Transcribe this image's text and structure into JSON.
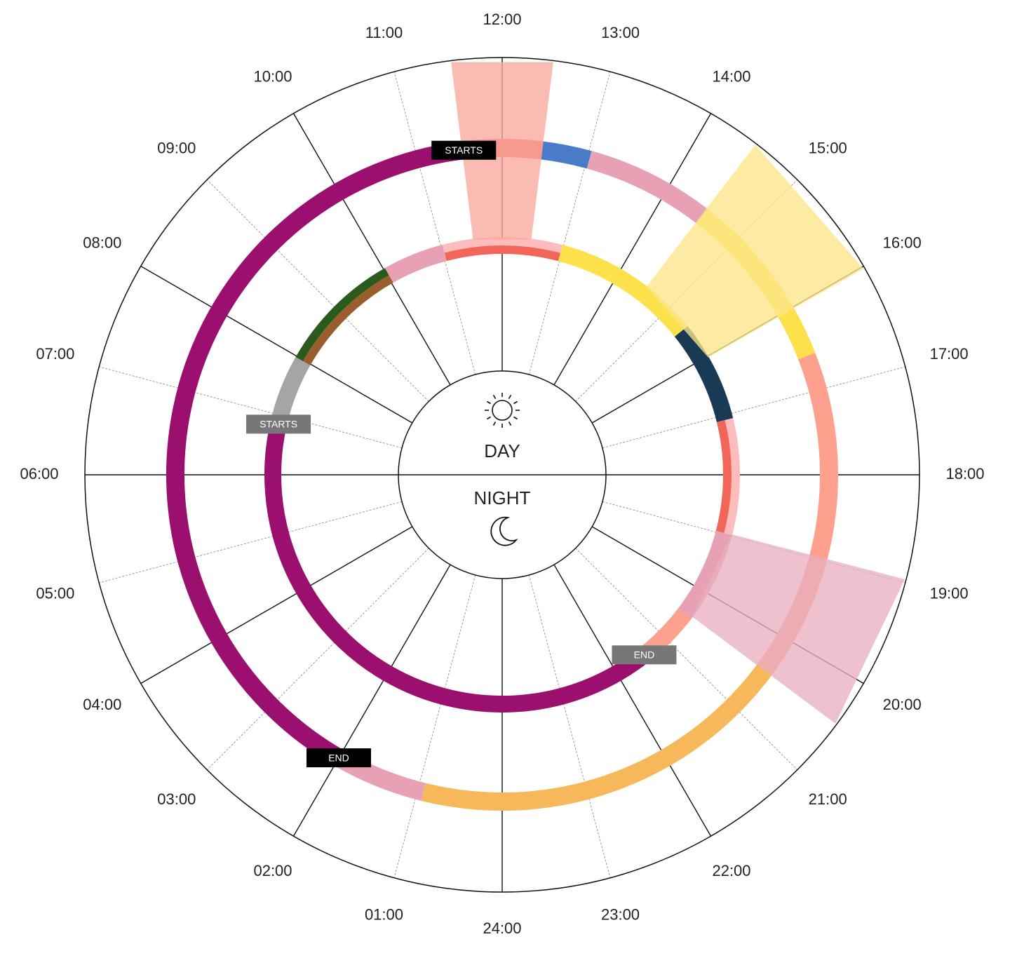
{
  "hour_labels": [
    "01:00",
    "02:00",
    "03:00",
    "04:00",
    "05:00",
    "06:00",
    "07:00",
    "08:00",
    "09:00",
    "10:00",
    "11:00",
    "12:00",
    "13:00",
    "14:00",
    "15:00",
    "16:00",
    "17:00",
    "18:00",
    "19:00",
    "20:00",
    "21:00",
    "22:00",
    "23:00",
    "24:00"
  ],
  "center": {
    "day": "DAY",
    "night": "NIGHT"
  },
  "outer_ring": {
    "segments": [
      {
        "start": 2.0,
        "end": 11.55,
        "colors": [
          "#9b0f6f"
        ]
      },
      {
        "start": 11.55,
        "end": 12.47,
        "colors": [
          "#f26659"
        ]
      },
      {
        "start": 12.47,
        "end": 13.03,
        "colors": [
          "#4a7bc8"
        ]
      },
      {
        "start": 13.03,
        "end": 14.52,
        "colors": [
          "#e7a0b4"
        ]
      },
      {
        "start": 14.52,
        "end": 16.58,
        "colors": [
          "#fce14a"
        ]
      },
      {
        "start": 16.58,
        "end": 20.37,
        "colors": [
          "#fea08e"
        ]
      },
      {
        "start": 20.37,
        "end": 0.93,
        "colors": [
          "#f6b85a"
        ]
      },
      {
        "start": 0.93,
        "end": 2.0,
        "colors": [
          "#e7a0b4"
        ]
      }
    ],
    "markers": [
      {
        "label": "STARTS",
        "hour": 11.55,
        "color": "#000000"
      },
      {
        "label": "END",
        "hour": 2.0,
        "color": "#000000"
      }
    ]
  },
  "inner_ring": {
    "segments": [
      {
        "start": 21.45,
        "end": 6.85,
        "colors": [
          "#9b0f6f"
        ]
      },
      {
        "start": 6.85,
        "end": 7.98,
        "colors": [
          "#a5a5a5"
        ]
      },
      {
        "start": 7.98,
        "end": 10.03,
        "colors": [
          "#2b5a1d",
          "#9a5e2d"
        ]
      },
      {
        "start": 10.03,
        "end": 11.03,
        "colors": [
          "#e7a0b4"
        ]
      },
      {
        "start": 11.03,
        "end": 12.98,
        "colors": [
          "#ffbcbc",
          "#f26659"
        ]
      },
      {
        "start": 12.98,
        "end": 15.42,
        "colors": [
          "#fce14a"
        ]
      },
      {
        "start": 15.42,
        "end": 17.08,
        "colors": [
          "#183a54"
        ]
      },
      {
        "start": 17.08,
        "end": 18.98,
        "colors": [
          "#ffbcbc",
          "#f26659"
        ]
      },
      {
        "start": 18.98,
        "end": 20.48,
        "colors": [
          "#e7a0b4"
        ]
      },
      {
        "start": 20.48,
        "end": 21.45,
        "colors": [
          "#fea08e"
        ]
      }
    ],
    "markers": [
      {
        "label": "STARTS",
        "hour": 6.85,
        "color": "#777777"
      },
      {
        "label": "END",
        "hour": 21.45,
        "color": "#777777"
      }
    ]
  },
  "wedges": [
    {
      "start": 11.53,
      "end": 12.47,
      "color": "#f9a89c"
    },
    {
      "start": 14.5,
      "end": 16.02,
      "color": "#fde58a"
    },
    {
      "start": 18.97,
      "end": 20.45,
      "color": "#e8b0bf"
    }
  ]
}
